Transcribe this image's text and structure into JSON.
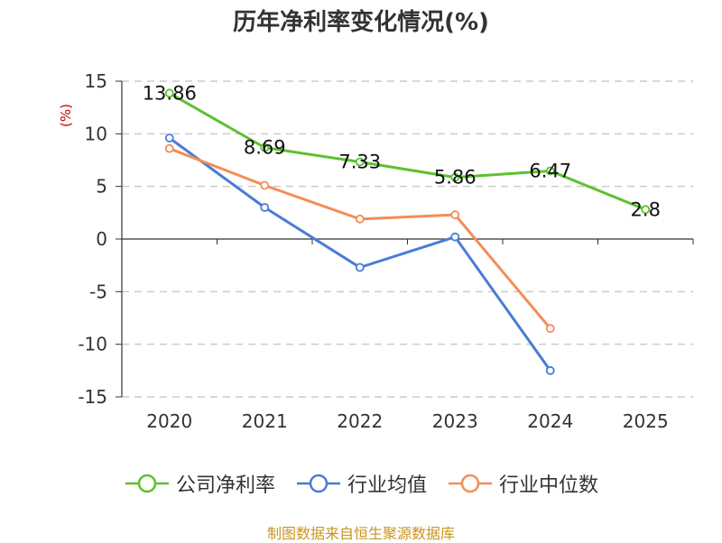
{
  "title": "历年净利率变化情况(%)",
  "source": "制图数据来自恒生聚源数据库",
  "chart_data": {
    "type": "line",
    "title": "历年净利率变化情况(%)",
    "ylabel": "(%)",
    "xlabel": "",
    "categories": [
      "2020",
      "2021",
      "2022",
      "2023",
      "2024",
      "2025"
    ],
    "ylim": [
      -15,
      15
    ],
    "yticks": [
      15,
      10,
      5,
      0,
      -5,
      -10,
      -15
    ],
    "grid": true,
    "legend_position": "bottom",
    "series": [
      {
        "name": "公司净利率",
        "color": "#5cc12f",
        "values": [
          13.86,
          8.69,
          7.33,
          5.86,
          6.47,
          2.8
        ],
        "labels": [
          "13.86",
          "8.69",
          "7.33",
          "5.86",
          "6.47",
          "2.8"
        ]
      },
      {
        "name": "行业均值",
        "color": "#4a7bd8",
        "values": [
          9.6,
          3.0,
          -2.7,
          0.2,
          -12.5,
          null
        ]
      },
      {
        "name": "行业中位数",
        "color": "#f58c56",
        "values": [
          8.6,
          5.1,
          1.9,
          2.3,
          -8.5,
          null
        ]
      }
    ]
  }
}
